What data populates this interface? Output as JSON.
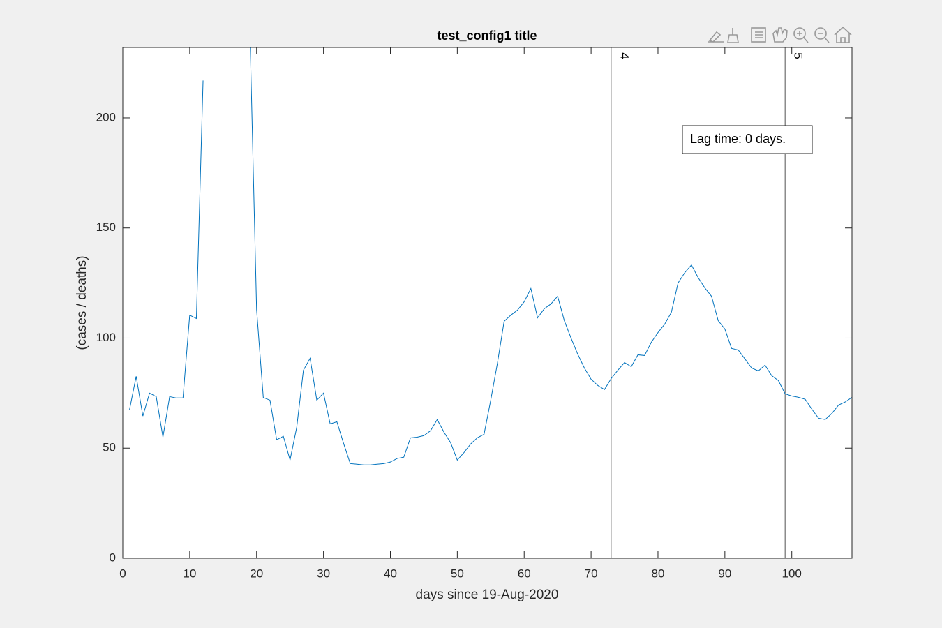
{
  "chart_data": {
    "type": "line",
    "title": "test_config1 title",
    "x_label": "days since 19-Aug-2020",
    "y_label": "(cases / deaths)",
    "x": [
      1,
      2,
      3,
      4,
      5,
      6,
      7,
      8,
      9,
      10,
      11,
      12,
      13,
      14,
      15,
      16,
      17,
      18,
      19,
      20,
      21,
      22,
      23,
      24,
      25,
      26,
      27,
      28,
      29,
      30,
      31,
      32,
      33,
      34,
      35,
      36,
      37,
      38,
      39,
      40,
      41,
      42,
      43,
      44,
      45,
      46,
      47,
      48,
      49,
      50,
      51,
      52,
      53,
      54,
      55,
      56,
      57,
      58,
      59,
      60,
      61,
      62,
      63,
      64,
      65,
      66,
      67,
      68,
      69,
      70,
      71,
      72,
      73,
      74,
      75,
      76,
      77,
      78,
      79,
      80,
      81,
      82,
      83,
      84,
      85,
      86,
      87,
      88,
      89,
      90,
      91,
      92,
      93,
      94,
      95,
      96,
      97,
      98,
      99,
      100,
      101,
      102,
      103,
      104,
      105,
      106,
      107,
      108,
      109
    ],
    "series": [
      {
        "color": "#0072bd",
        "values": [
          67.4,
          82.6,
          64.6,
          75,
          73.4,
          55,
          73.4,
          72.8,
          72.8,
          110.4,
          108.9,
          217,
          null,
          null,
          null,
          null,
          null,
          null,
          240,
          113,
          73,
          71.8,
          53.8,
          55.4,
          44.6,
          59.5,
          85.4,
          90.8,
          71.8,
          75,
          61,
          62,
          52.2,
          43,
          42.7,
          42.4,
          42.4,
          42.7,
          43,
          43.7,
          45.3,
          45.9,
          54.7,
          55,
          55.7,
          57.9,
          63,
          57.3,
          52.5,
          44.6,
          48,
          51.9,
          54.7,
          56.3,
          71.8,
          88.6,
          107.6,
          110.4,
          112.7,
          116.5,
          122.5,
          109.2,
          113.3,
          115.5,
          119,
          107.9,
          100,
          92.7,
          86.4,
          81.3,
          78.5,
          76.6,
          81.6,
          85.4,
          88.9,
          87,
          92.4,
          92.1,
          98.1,
          102.5,
          106.3,
          111.7,
          125,
          129.7,
          133.2,
          127.5,
          122.8,
          119,
          107.9,
          104.1,
          95.3,
          94.6,
          90.5,
          86.4,
          85.1,
          87.7,
          82.9,
          80.7,
          74.7,
          73.7,
          73.1,
          72.2,
          67.7,
          63.6,
          63,
          65.8,
          69.6,
          71,
          73.1
        ]
      }
    ],
    "xlim": [
      0,
      109
    ],
    "ylim": [
      0,
      232
    ],
    "xticks": [
      0,
      10,
      20,
      30,
      40,
      50,
      60,
      70,
      80,
      90,
      100
    ],
    "yticks": [
      0,
      50,
      100,
      150,
      200
    ],
    "vlines": [
      {
        "x": 73,
        "label": "4"
      },
      {
        "x": 99,
        "label": "5"
      }
    ],
    "annotation": "Lag time: 0 days."
  }
}
